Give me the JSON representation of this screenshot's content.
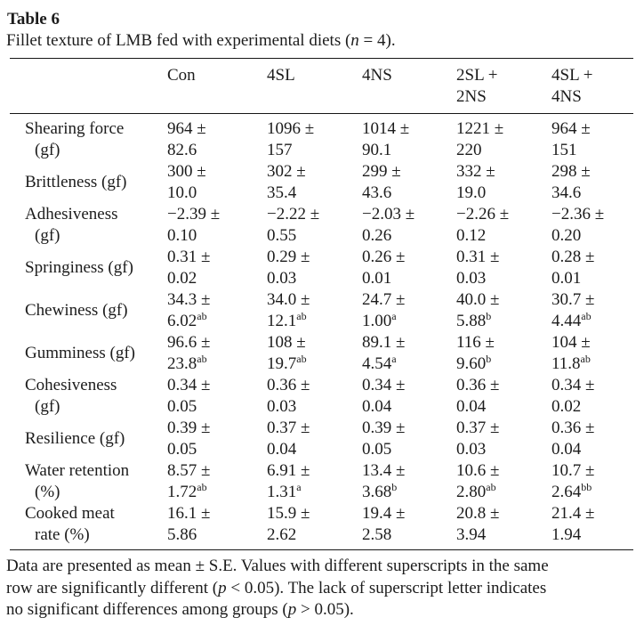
{
  "page": {
    "background_color": "#ffffff",
    "text_color": "#1c1c1c",
    "rule_color": "#161616"
  },
  "title": "Table 6",
  "caption": {
    "pre": "Fillet texture of LMB fed with experimental diets (",
    "var": "n",
    "post": " = 4)."
  },
  "table": {
    "columns": [
      {
        "line1": "Con",
        "line2": ""
      },
      {
        "line1": "4SL",
        "line2": ""
      },
      {
        "line1": "4NS",
        "line2": ""
      },
      {
        "line1": "2SL +",
        "line2": "2NS"
      },
      {
        "line1": "4SL +",
        "line2": "4NS"
      }
    ],
    "rows": [
      {
        "label1": "Shearing force",
        "label2": "(gf)",
        "cells": [
          {
            "line1": "964 ±",
            "line2": "82.6",
            "sup": ""
          },
          {
            "line1": "1096 ±",
            "line2": "157",
            "sup": ""
          },
          {
            "line1": "1014 ±",
            "line2": "90.1",
            "sup": ""
          },
          {
            "line1": "1221 ±",
            "line2": "220",
            "sup": ""
          },
          {
            "line1": "964 ±",
            "line2": "151",
            "sup": ""
          }
        ]
      },
      {
        "label1": "Brittleness (gf)",
        "label2": "",
        "cells": [
          {
            "line1": "300 ±",
            "line2": "10.0",
            "sup": ""
          },
          {
            "line1": "302 ±",
            "line2": "35.4",
            "sup": ""
          },
          {
            "line1": "299 ±",
            "line2": "43.6",
            "sup": ""
          },
          {
            "line1": "332 ±",
            "line2": "19.0",
            "sup": ""
          },
          {
            "line1": "298 ±",
            "line2": "34.6",
            "sup": ""
          }
        ]
      },
      {
        "label1": "Adhesiveness",
        "label2": "(gf)",
        "cells": [
          {
            "line1": "−2.39 ±",
            "line2": "0.10",
            "sup": ""
          },
          {
            "line1": "−2.22 ±",
            "line2": "0.55",
            "sup": ""
          },
          {
            "line1": "−2.03 ±",
            "line2": "0.26",
            "sup": ""
          },
          {
            "line1": "−2.26 ±",
            "line2": "0.12",
            "sup": ""
          },
          {
            "line1": "−2.36 ±",
            "line2": "0.20",
            "sup": ""
          }
        ]
      },
      {
        "label1": "Springiness (gf)",
        "label2": "",
        "cells": [
          {
            "line1": "0.31 ±",
            "line2": "0.02",
            "sup": ""
          },
          {
            "line1": "0.29 ±",
            "line2": "0.03",
            "sup": ""
          },
          {
            "line1": "0.26 ±",
            "line2": "0.01",
            "sup": ""
          },
          {
            "line1": "0.31 ±",
            "line2": "0.03",
            "sup": ""
          },
          {
            "line1": "0.28 ±",
            "line2": "0.01",
            "sup": ""
          }
        ]
      },
      {
        "label1": "Chewiness (gf)",
        "label2": "",
        "cells": [
          {
            "line1": "34.3 ±",
            "line2": "6.02",
            "sup": "ab"
          },
          {
            "line1": "34.0 ±",
            "line2": "12.1",
            "sup": "ab"
          },
          {
            "line1": "24.7 ±",
            "line2": "1.00",
            "sup": "a"
          },
          {
            "line1": "40.0 ±",
            "line2": "5.88",
            "sup": "b"
          },
          {
            "line1": "30.7 ±",
            "line2": "4.44",
            "sup": "ab"
          }
        ]
      },
      {
        "label1": "Gumminess (gf)",
        "label2": "",
        "cells": [
          {
            "line1": "96.6 ±",
            "line2": "23.8",
            "sup": "ab"
          },
          {
            "line1": "108 ±",
            "line2": "19.7",
            "sup": "ab"
          },
          {
            "line1": "89.1 ±",
            "line2": "4.54",
            "sup": "a"
          },
          {
            "line1": "116 ±",
            "line2": "9.60",
            "sup": "b"
          },
          {
            "line1": "104 ±",
            "line2": "11.8",
            "sup": "ab"
          }
        ]
      },
      {
        "label1": "Cohesiveness",
        "label2": "(gf)",
        "cells": [
          {
            "line1": "0.34 ±",
            "line2": "0.05",
            "sup": ""
          },
          {
            "line1": "0.36 ±",
            "line2": "0.03",
            "sup": ""
          },
          {
            "line1": "0.34 ±",
            "line2": "0.04",
            "sup": ""
          },
          {
            "line1": "0.36 ±",
            "line2": "0.04",
            "sup": ""
          },
          {
            "line1": "0.34 ±",
            "line2": "0.02",
            "sup": ""
          }
        ]
      },
      {
        "label1": "Resilience (gf)",
        "label2": "",
        "cells": [
          {
            "line1": "0.39 ±",
            "line2": "0.05",
            "sup": ""
          },
          {
            "line1": "0.37 ±",
            "line2": "0.04",
            "sup": ""
          },
          {
            "line1": "0.39 ±",
            "line2": "0.05",
            "sup": ""
          },
          {
            "line1": "0.37 ±",
            "line2": "0.03",
            "sup": ""
          },
          {
            "line1": "0.36 ±",
            "line2": "0.04",
            "sup": ""
          }
        ]
      },
      {
        "label1": "Water retention",
        "label2": "(%)",
        "cells": [
          {
            "line1": "8.57 ±",
            "line2": "1.72",
            "sup": "ab"
          },
          {
            "line1": "6.91 ±",
            "line2": "1.31",
            "sup": "a"
          },
          {
            "line1": "13.4 ±",
            "line2": "3.68",
            "sup": "b"
          },
          {
            "line1": "10.6 ±",
            "line2": "2.80",
            "sup": "ab"
          },
          {
            "line1": "10.7 ±",
            "line2": "2.64",
            "sup": "bb"
          }
        ]
      },
      {
        "label1": "Cooked meat",
        "label2": "rate (%)",
        "cells": [
          {
            "line1": "16.1 ±",
            "line2": "5.86",
            "sup": ""
          },
          {
            "line1": "15.9 ±",
            "line2": "2.62",
            "sup": ""
          },
          {
            "line1": "19.4 ±",
            "line2": "2.58",
            "sup": ""
          },
          {
            "line1": "20.8 ±",
            "line2": "3.94",
            "sup": ""
          },
          {
            "line1": "21.4 ±",
            "line2": "1.94",
            "sup": ""
          }
        ]
      }
    ]
  },
  "footnote": {
    "line1": "Data are presented as mean ± S.E. Values with different superscripts in the same",
    "line2_pre": "row are significantly different (",
    "line2_var": "p",
    "line2_post": " < 0.05). The lack of superscript letter indicates",
    "line3_pre": "no significant differences among groups (",
    "line3_var": "p",
    "line3_post": " > 0.05)."
  }
}
